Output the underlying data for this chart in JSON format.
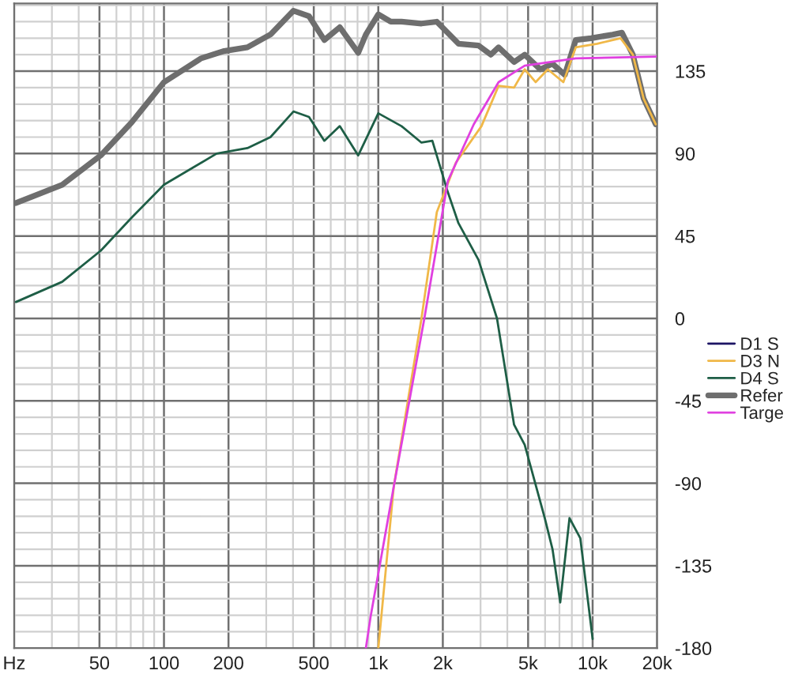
{
  "chart_data": {
    "type": "line",
    "xlim": [
      20,
      20000
    ],
    "ylim": [
      -180,
      172
    ],
    "log": "x",
    "xticks": [
      {
        "value": 20,
        "label": "Hz"
      },
      50,
      100,
      200,
      500,
      {
        "value": 1000,
        "label": "1k"
      },
      {
        "value": 2000,
        "label": "2k"
      },
      {
        "value": 5000,
        "label": "5k"
      },
      {
        "value": 10000,
        "label": "10k"
      },
      {
        "value": 20000,
        "label": "20k"
      }
    ],
    "yticks": [
      135,
      90,
      45,
      0,
      -45,
      -90,
      -135,
      -180
    ],
    "grid": true,
    "legend": "right",
    "marker": "none",
    "line_style": "solid",
    "series": [
      {
        "name": "D1 S",
        "color": "#1c1464"
      },
      {
        "name": "D3 N",
        "color": "#f0b848",
        "x": [
          1000,
          1180,
          1590,
          1875,
          2300,
          3030,
          3640,
          4300,
          4820,
          5420,
          6180,
          7300,
          8340,
          10500,
          13500,
          15400,
          17300,
          19700
        ],
        "values": [
          -180,
          -92,
          0,
          58,
          85,
          105,
          127,
          126,
          136,
          129,
          136,
          129,
          148,
          150,
          153,
          144,
          120,
          106
        ]
      },
      {
        "name": "D4 S",
        "color": "#1e5e46",
        "x": [
          20.4,
          33.5,
          50.7,
          70.6,
          100,
          176,
          245,
          314,
          402,
          475,
          560,
          661,
          806,
          1000,
          1283,
          1590,
          1787,
          2110,
          2366,
          2935,
          3580,
          4300,
          4820,
          5980,
          6500,
          7060,
          7800,
          8760,
          10000
        ],
        "values": [
          9,
          20,
          37,
          55,
          73,
          90,
          93,
          99,
          113,
          110,
          97,
          105,
          89,
          112,
          105,
          96,
          97,
          69,
          52,
          32,
          0,
          -58,
          -69,
          -109,
          -126,
          -155,
          -109,
          -120,
          -175
        ]
      },
      {
        "name": "Refer",
        "color": "#6e6e6e",
        "x": [
          20.4,
          33.5,
          50.7,
          70.6,
          100,
          149,
          191,
          245,
          314,
          402,
          475,
          560,
          661,
          806,
          875,
          1000,
          1143,
          1283,
          1590,
          1875,
          2366,
          2935,
          3350,
          3640,
          4300,
          4820,
          5690,
          6500,
          7420,
          8340,
          9840,
          12400,
          13700,
          15400,
          17300,
          19700
        ],
        "values": [
          63,
          73,
          89,
          107,
          129,
          142,
          146,
          148,
          155,
          168,
          165,
          152,
          159,
          145,
          155,
          166,
          162,
          162,
          161,
          162,
          150,
          149,
          144,
          148,
          140,
          144,
          136,
          139,
          133,
          152,
          153,
          155,
          156,
          144,
          120,
          106
        ]
      },
      {
        "name": "Targe",
        "color": "#e040e0",
        "x": [
          875,
          920,
          1180,
          1640,
          2110,
          2790,
          3640,
          4820,
          8340,
          19700
        ],
        "values": [
          -180,
          -163,
          -92,
          0,
          75,
          106,
          129,
          138,
          142,
          143
        ]
      }
    ]
  }
}
